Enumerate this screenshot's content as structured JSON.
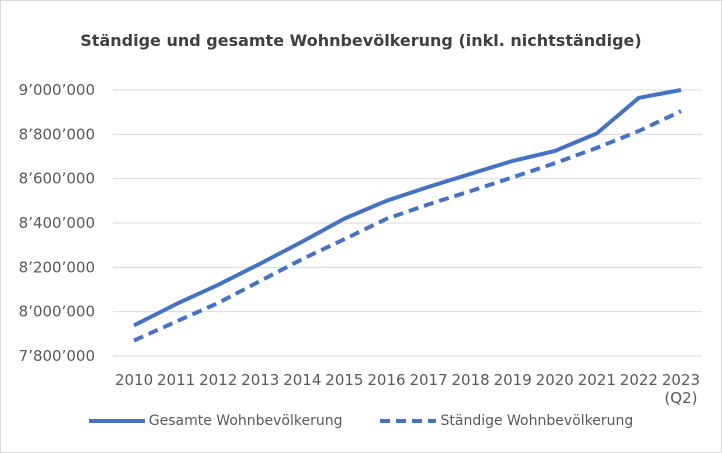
{
  "colors": {
    "series": "#4472c4",
    "grid": "#d9d9d9",
    "text": "#595959"
  },
  "chart_data": {
    "type": "line",
    "title": "Ständige und gesamte Wohnbevölkerung (inkl. nichtständige)",
    "x": [
      "2010",
      "2011",
      "2012",
      "2013",
      "2014",
      "2015",
      "2016",
      "2017",
      "2018",
      "2019",
      "2020",
      "2021",
      "2022",
      "2023 (Q2)"
    ],
    "ylim": [
      7800000,
      9000000
    ],
    "yticks": [
      7800000,
      8000000,
      8200000,
      8400000,
      8600000,
      8800000,
      9000000
    ],
    "ytick_labels": [
      "7’800’000",
      "8’000’000",
      "8’200’000",
      "8’400’000",
      "8’600’000",
      "8’800’000",
      "9’000’000"
    ],
    "grid": true,
    "legend_position": "bottom",
    "series": [
      {
        "name": "Gesamte Wohnbevölkerung",
        "style": "solid",
        "values": [
          7938000,
          8034000,
          8121000,
          8217000,
          8316000,
          8420000,
          8500000,
          8563000,
          8622000,
          8680000,
          8725000,
          8804000,
          8965000,
          9000000
        ]
      },
      {
        "name": "Ständige Wohnbevölkerung",
        "style": "dashed",
        "values": [
          7870000,
          7955000,
          8039000,
          8139000,
          8237000,
          8327000,
          8419000,
          8484000,
          8544000,
          8606000,
          8670000,
          8739000,
          8815000,
          8905000
        ]
      }
    ]
  }
}
